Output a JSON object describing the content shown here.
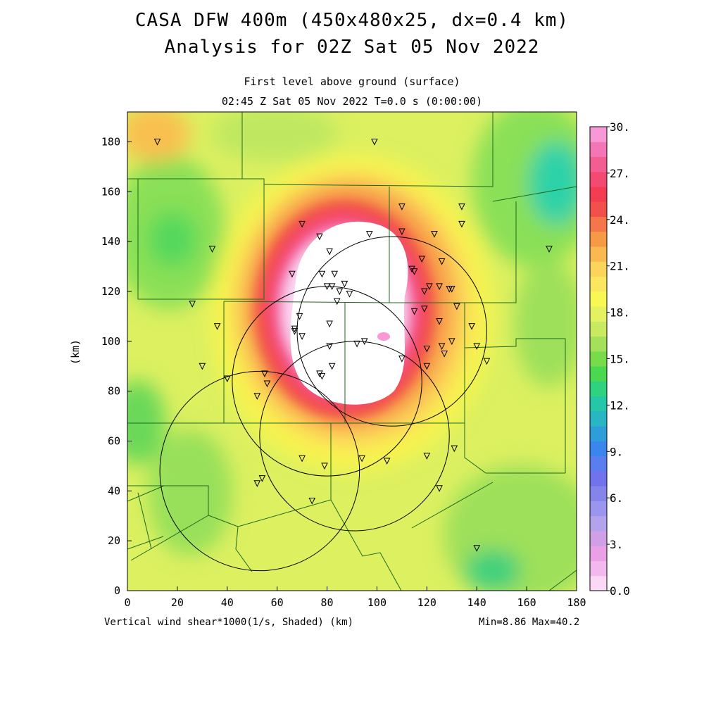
{
  "header": {
    "title_line1": "CASA DFW 400m (450x480x25, dx=0.4 km)",
    "title_line2": "Analysis for 02Z Sat 05 Nov 2022",
    "subtitle_line1": "First level above ground (surface)",
    "subtitle_line2": "02:45 Z Sat 05 Nov 2022    T=0.0 s (0:00:00)"
  },
  "footer": {
    "variable_label": "Vertical wind shear*1000(1/s, Shaded)  (km)",
    "minmax": "Min=8.86 Max=40.2"
  },
  "chart_data": {
    "type": "heatmap",
    "xlabel": "",
    "ylabel": "(km)",
    "xlim": [
      0,
      180
    ],
    "ylim": [
      0,
      192
    ],
    "x_ticks": [
      "0",
      "20",
      "40",
      "60",
      "80",
      "100",
      "120",
      "140",
      "160",
      "180"
    ],
    "y_ticks": [
      "0",
      "20",
      "40",
      "60",
      "80",
      "100",
      "120",
      "140",
      "160",
      "180"
    ],
    "colorbar": {
      "min": 0.0,
      "max": 30.0,
      "labels": [
        "0.0",
        "3.",
        "6.",
        "9.",
        "12.",
        "15.",
        "18.",
        "21.",
        "24.",
        "27.",
        "30."
      ],
      "colors": [
        "#fbd8f5",
        "#f3b8ec",
        "#e9a0e4",
        "#cfa0e6",
        "#b3a3ec",
        "#9a95ee",
        "#8484ea",
        "#7073ea",
        "#5a7ef0",
        "#3a86ee",
        "#2f9ed8",
        "#28b6c4",
        "#24c8a8",
        "#2fd27e",
        "#4ad850",
        "#78dc4a",
        "#a4e05a",
        "#c8ea60",
        "#e4f262",
        "#f8f852",
        "#fbe660",
        "#fcd45c",
        "#fab850",
        "#f79a48",
        "#f4764a",
        "#f2504a",
        "#f43c52",
        "#f44a72",
        "#f25e92",
        "#f476b6",
        "#f898d6"
      ]
    },
    "stats": {
      "min": 8.86,
      "max": 40.2
    },
    "radar_circles": [
      {
        "cx": 106,
        "cy": 104,
        "r": 38
      },
      {
        "cx": 80,
        "cy": 84,
        "r": 38
      },
      {
        "cx": 91,
        "cy": 62,
        "r": 38
      },
      {
        "cx": 53,
        "cy": 48,
        "r": 40
      }
    ],
    "stations": [
      [
        12,
        180
      ],
      [
        99,
        180
      ],
      [
        34,
        137
      ],
      [
        26,
        115
      ],
      [
        36,
        106
      ],
      [
        30,
        90
      ],
      [
        40,
        85
      ],
      [
        55,
        87
      ],
      [
        56,
        83
      ],
      [
        52,
        78
      ],
      [
        54,
        45
      ],
      [
        52,
        43
      ],
      [
        74,
        36
      ],
      [
        70,
        53
      ],
      [
        79,
        50
      ],
      [
        94,
        53
      ],
      [
        104,
        52
      ],
      [
        120,
        54
      ],
      [
        131,
        57
      ],
      [
        125,
        41
      ],
      [
        140,
        17
      ],
      [
        70,
        147
      ],
      [
        77,
        142
      ],
      [
        81,
        136
      ],
      [
        97,
        143
      ],
      [
        110,
        154
      ],
      [
        110,
        144
      ],
      [
        123,
        143
      ],
      [
        134,
        154
      ],
      [
        134,
        147
      ],
      [
        66,
        127
      ],
      [
        78,
        127
      ],
      [
        83,
        127
      ],
      [
        85,
        120
      ],
      [
        87,
        123
      ],
      [
        80,
        122
      ],
      [
        82,
        122
      ],
      [
        89,
        119
      ],
      [
        84,
        116
      ],
      [
        69,
        110
      ],
      [
        81,
        107
      ],
      [
        67,
        105
      ],
      [
        67,
        104
      ],
      [
        70,
        102
      ],
      [
        81,
        98
      ],
      [
        92,
        99
      ],
      [
        95,
        100
      ],
      [
        82,
        90
      ],
      [
        77,
        87
      ],
      [
        78,
        86
      ],
      [
        118,
        133
      ],
      [
        114,
        129
      ],
      [
        115,
        128
      ],
      [
        119,
        120
      ],
      [
        121,
        122
      ],
      [
        125,
        122
      ],
      [
        115,
        112
      ],
      [
        119,
        113
      ],
      [
        126,
        132
      ],
      [
        129,
        121
      ],
      [
        130,
        121
      ],
      [
        132,
        114
      ],
      [
        125,
        108
      ],
      [
        126,
        98
      ],
      [
        120,
        97
      ],
      [
        130,
        100
      ],
      [
        110,
        93
      ],
      [
        120,
        90
      ],
      [
        127,
        95
      ],
      [
        138,
        106
      ],
      [
        140,
        98
      ],
      [
        144,
        92
      ],
      [
        169,
        137
      ]
    ]
  }
}
